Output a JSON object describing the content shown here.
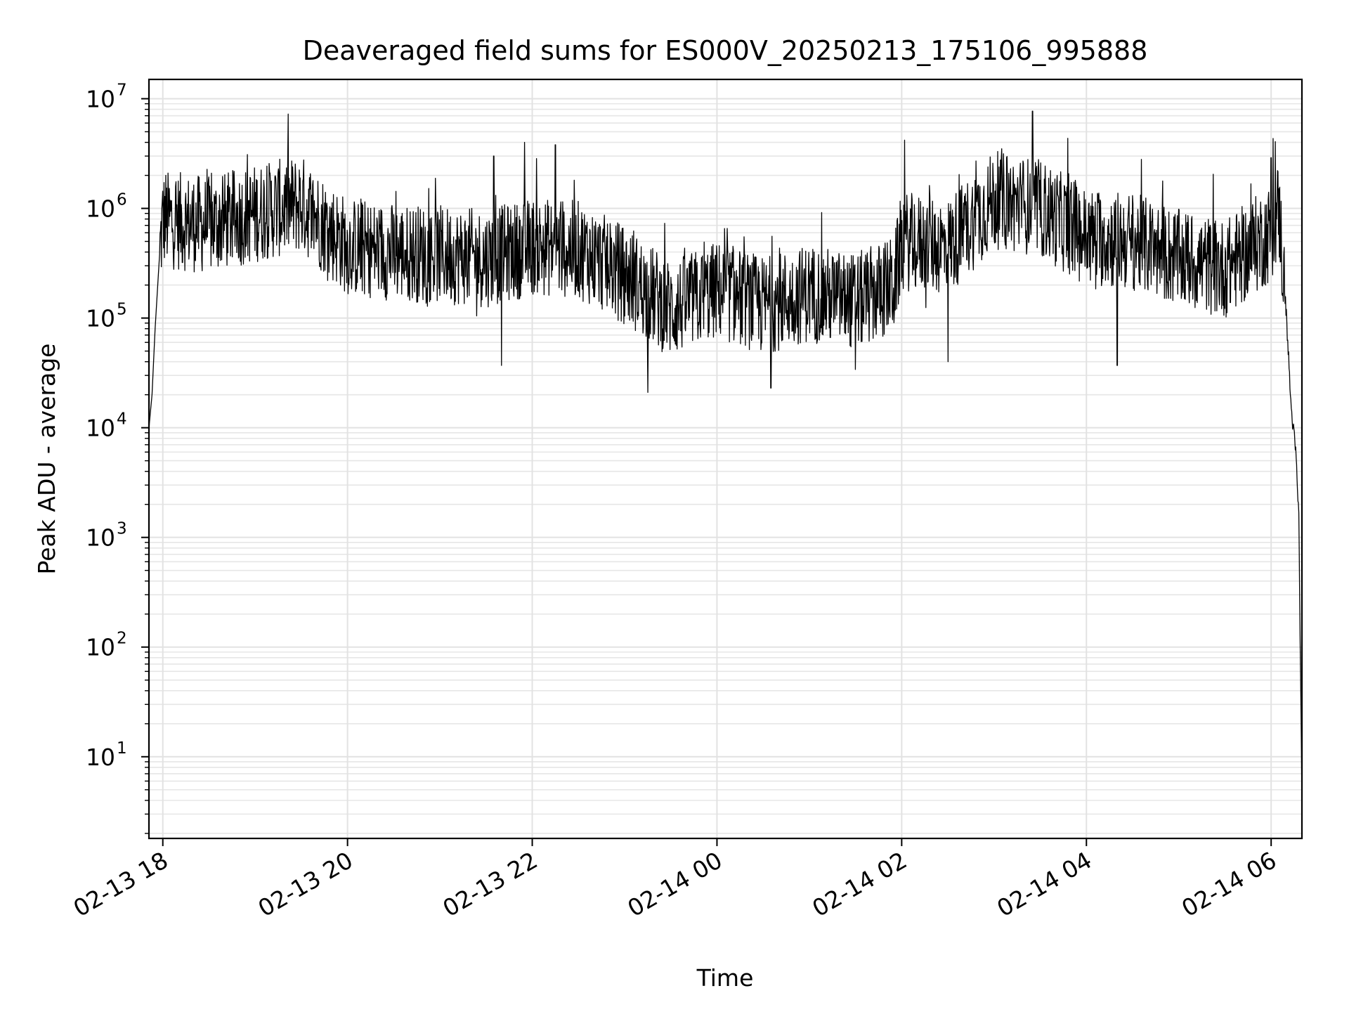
{
  "chart_data": {
    "type": "line",
    "title": "Deaveraged field sums for ES000V_20250213_175106_995888",
    "xlabel": "Time",
    "ylabel": "Peak ADU - average",
    "y_scale": "log",
    "grid": true,
    "xlim": [
      "2025-02-13 17:51",
      "2025-02-14 06:20"
    ],
    "ylim": [
      1.8,
      15000000
    ],
    "x_ticks": [
      {
        "value": "2025-02-13 18:00",
        "label": "02-13 18"
      },
      {
        "value": "2025-02-13 20:00",
        "label": "02-13 20"
      },
      {
        "value": "2025-02-13 22:00",
        "label": "02-13 22"
      },
      {
        "value": "2025-02-14 00:00",
        "label": "02-14 00"
      },
      {
        "value": "2025-02-14 02:00",
        "label": "02-14 02"
      },
      {
        "value": "2025-02-14 04:00",
        "label": "02-14 04"
      },
      {
        "value": "2025-02-14 06:00",
        "label": "02-14 06"
      }
    ],
    "y_ticks": [
      {
        "value": 10,
        "base": "10",
        "exp": "1"
      },
      {
        "value": 100,
        "base": "10",
        "exp": "2"
      },
      {
        "value": 1000,
        "base": "10",
        "exp": "3"
      },
      {
        "value": 10000,
        "base": "10",
        "exp": "4"
      },
      {
        "value": 100000,
        "base": "10",
        "exp": "5"
      },
      {
        "value": 1000000,
        "base": "10",
        "exp": "6"
      },
      {
        "value": 10000000,
        "base": "10",
        "exp": "7"
      }
    ],
    "series": [
      {
        "color": "#000000",
        "points": [
          {
            "x": "2025-02-13 17:51",
            "y": 10000
          },
          {
            "x": "2025-02-13 17:53",
            "y": 20000
          },
          {
            "x": "2025-02-13 17:55",
            "y": 80000
          },
          {
            "x": "2025-02-13 17:58",
            "y": 400000
          },
          {
            "x": "2025-02-13 18:00",
            "y": 800000
          },
          {
            "x": "2025-02-13 18:30",
            "y": 700000
          },
          {
            "x": "2025-02-13 19:00",
            "y": 900000
          },
          {
            "x": "2025-02-13 19:30",
            "y": 1100000
          },
          {
            "x": "2025-02-13 20:00",
            "y": 450000
          },
          {
            "x": "2025-02-13 20:30",
            "y": 400000
          },
          {
            "x": "2025-02-13 21:00",
            "y": 380000
          },
          {
            "x": "2025-02-13 21:30",
            "y": 350000
          },
          {
            "x": "2025-02-13 22:00",
            "y": 450000
          },
          {
            "x": "2025-02-13 22:30",
            "y": 420000
          },
          {
            "x": "2025-02-13 23:00",
            "y": 250000
          },
          {
            "x": "2025-02-13 23:30",
            "y": 120000
          },
          {
            "x": "2025-02-14 00:00",
            "y": 180000
          },
          {
            "x": "2025-02-14 00:30",
            "y": 130000
          },
          {
            "x": "2025-02-14 01:00",
            "y": 170000
          },
          {
            "x": "2025-02-14 01:30",
            "y": 140000
          },
          {
            "x": "2025-02-14 01:55",
            "y": 200000
          },
          {
            "x": "2025-02-14 02:00",
            "y": 500000
          },
          {
            "x": "2025-02-14 02:30",
            "y": 450000
          },
          {
            "x": "2025-02-14 03:00",
            "y": 1200000
          },
          {
            "x": "2025-02-14 03:30",
            "y": 1000000
          },
          {
            "x": "2025-02-14 04:00",
            "y": 550000
          },
          {
            "x": "2025-02-14 04:30",
            "y": 500000
          },
          {
            "x": "2025-02-14 05:00",
            "y": 350000
          },
          {
            "x": "2025-02-14 05:30",
            "y": 280000
          },
          {
            "x": "2025-02-14 06:00",
            "y": 600000
          },
          {
            "x": "2025-02-14 06:05",
            "y": 1000000
          },
          {
            "x": "2025-02-14 06:10",
            "y": 100000
          },
          {
            "x": "2025-02-14 06:13",
            "y": 15000
          },
          {
            "x": "2025-02-14 06:16",
            "y": 6000
          },
          {
            "x": "2025-02-14 06:18",
            "y": 1500
          },
          {
            "x": "2025-02-14 06:20",
            "y": 4
          }
        ],
        "spikes": [
          {
            "x": "2025-02-13 18:02",
            "y": 2000000
          },
          {
            "x": "2025-02-13 18:55",
            "y": 3100000
          },
          {
            "x": "2025-02-13 21:35",
            "y": 3000000
          },
          {
            "x": "2025-02-13 21:55",
            "y": 4000000
          },
          {
            "x": "2025-02-13 22:15",
            "y": 3800000
          },
          {
            "x": "2025-02-14 03:25",
            "y": 7700000
          },
          {
            "x": "2025-02-14 03:05",
            "y": 3500000
          },
          {
            "x": "2025-02-14 06:00",
            "y": 2900000
          }
        ],
        "dips": [
          {
            "x": "2025-02-13 17:51",
            "y": 9500
          },
          {
            "x": "2025-02-13 21:40",
            "y": 37000
          },
          {
            "x": "2025-02-13 23:15",
            "y": 21000
          },
          {
            "x": "2025-02-14 00:35",
            "y": 23000
          },
          {
            "x": "2025-02-14 01:30",
            "y": 34000
          },
          {
            "x": "2025-02-14 02:30",
            "y": 40000
          },
          {
            "x": "2025-02-14 04:20",
            "y": 37000
          }
        ]
      }
    ]
  }
}
